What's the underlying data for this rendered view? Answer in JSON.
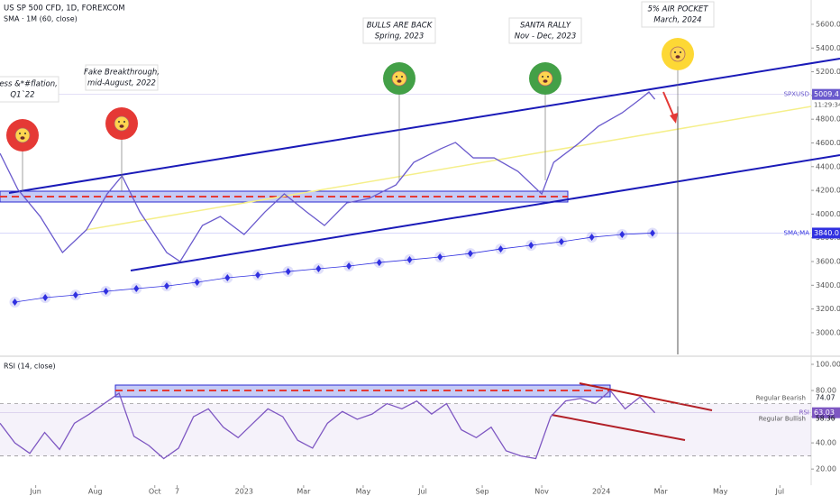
{
  "chart_data": [
    {
      "type": "line",
      "title": "US SP 500 CFD, 1D, FOREXCOM",
      "subtitle": "SMA · 1M (60, close)",
      "xlim": [
        3.8,
        31.05
      ],
      "ylim": [
        2817,
        5805
      ],
      "xticks": [
        {
          "value": 5,
          "label": "Jun"
        },
        {
          "value": 7,
          "label": "Aug"
        },
        {
          "value": 9,
          "label": "Oct"
        },
        {
          "value": 9.75,
          "label": "7"
        },
        {
          "value": 12,
          "label": "2023"
        },
        {
          "value": 14,
          "label": "Mar"
        },
        {
          "value": 16,
          "label": "May"
        },
        {
          "value": 18,
          "label": "Jul"
        },
        {
          "value": 20,
          "label": "Sep"
        },
        {
          "value": 22,
          "label": "Nov"
        },
        {
          "value": 24,
          "label": "2024"
        },
        {
          "value": 26,
          "label": "Mar"
        },
        {
          "value": 28,
          "label": "May"
        },
        {
          "value": 30,
          "label": "Jul"
        }
      ],
      "yticks": [
        {
          "value": 3000,
          "label": "3000.0"
        },
        {
          "value": 3200,
          "label": "3200.0"
        },
        {
          "value": 3400,
          "label": "3400.0"
        },
        {
          "value": 3600,
          "label": "3600.0"
        },
        {
          "value": 3800,
          "label": "3800.0"
        },
        {
          "value": 4000,
          "label": "4000.0"
        },
        {
          "value": 4200,
          "label": "4200.0"
        },
        {
          "value": 4400,
          "label": "4400.0"
        },
        {
          "value": 4600,
          "label": "4600.0"
        },
        {
          "value": 4800,
          "label": "4800.0"
        },
        {
          "value": 5000,
          "label": "5000.0"
        },
        {
          "value": 5200,
          "label": "5200.0"
        },
        {
          "value": 5400,
          "label": "5400.0"
        },
        {
          "value": 5600,
          "label": "5600.0"
        }
      ],
      "series": [
        {
          "name": "SPXUSD",
          "color": "#6a5acd",
          "x": [
            3.8,
            4.4,
            5.15,
            5.9,
            6.7,
            7.4,
            7.9,
            8.5,
            9.4,
            9.85,
            10.6,
            11.2,
            12,
            12.7,
            13.35,
            14.1,
            14.7,
            15.45,
            16.2,
            17.1,
            17.7,
            18.6,
            19.1,
            19.7,
            20.4,
            21.2,
            22,
            22.4,
            23.2,
            23.9,
            24.7,
            25.3,
            25.6,
            25.8
          ],
          "values": [
            4512,
            4208,
            3980,
            3676,
            3866,
            4170,
            4322,
            4018,
            3676,
            3600,
            3904,
            3980,
            3828,
            4018,
            4170,
            4018,
            3904,
            4094,
            4132,
            4246,
            4436,
            4550,
            4604,
            4474,
            4474,
            4360,
            4170,
            4436,
            4588,
            4740,
            4854,
            4968,
            5029,
            4968
          ],
          "last_value": {
            "value": 5009.4,
            "label": "5009.4"
          },
          "last_time": "11:29:34"
        },
        {
          "name": "SMA;MA",
          "color": "#3030e0",
          "x": [
            4.3,
            5.32,
            6.34,
            7.36,
            8.38,
            9.4,
            10.42,
            11.44,
            12.46,
            13.48,
            14.5,
            15.52,
            16.54,
            17.56,
            18.58,
            19.6,
            20.62,
            21.64,
            22.66,
            23.68,
            24.7,
            25.72
          ],
          "values": [
            3258,
            3296,
            3318,
            3349,
            3372,
            3394,
            3425,
            3463,
            3486,
            3516,
            3539,
            3562,
            3592,
            3615,
            3638,
            3668,
            3706,
            3737,
            3767,
            3805,
            3828,
            3840
          ],
          "last_value": {
            "value": 3840,
            "label": "3840.0"
          }
        }
      ],
      "annotations": [
        {
          "lines": [
            "ndless &*#flation,",
            "Q1`22"
          ]
        },
        {
          "lines": [
            "Fake Breakthrough,",
            "mid-August, 2022"
          ]
        },
        {
          "lines": [
            "BULLS ARE BACK",
            "Spring, 2023"
          ]
        },
        {
          "lines": [
            "SANTA RALLY",
            "Nov - Dec, 2023"
          ]
        },
        {
          "lines": [
            "5% AIR POCKET",
            "March, 2024"
          ]
        }
      ]
    },
    {
      "type": "line",
      "title": "RSI (14, close)",
      "xlim": [
        3.8,
        31.05
      ],
      "ylim": [
        7.7,
        105.5
      ],
      "yticks": [
        {
          "value": 20,
          "label": "20.00"
        },
        {
          "value": 40,
          "label": "40.00"
        },
        {
          "value": 60,
          "label": "60.00"
        },
        {
          "value": 80,
          "label": "80.00"
        },
        {
          "value": 100,
          "label": "100.00"
        }
      ],
      "band": [
        30,
        70
      ],
      "series": [
        {
          "name": "RSI",
          "color": "#7e57c2",
          "x": [
            3.8,
            4.3,
            4.8,
            5.3,
            5.8,
            6.3,
            6.8,
            7.3,
            7.8,
            8.3,
            8.8,
            9.3,
            9.8,
            10.3,
            10.8,
            11.3,
            11.8,
            12.3,
            12.8,
            13.3,
            13.8,
            14.3,
            14.8,
            15.3,
            15.8,
            16.3,
            16.8,
            17.3,
            17.8,
            18.3,
            18.8,
            19.3,
            19.8,
            20.3,
            20.8,
            21.3,
            21.8,
            22.3,
            22.8,
            23.3,
            23.8,
            24.3,
            24.8,
            25.3,
            25.8
          ],
          "values": [
            55,
            40,
            32,
            48,
            35,
            55,
            62,
            70,
            78,
            45,
            38,
            28,
            36,
            60,
            66,
            52,
            44,
            55,
            66,
            60,
            42,
            36,
            55,
            64,
            58,
            62,
            70,
            66,
            72,
            62,
            70,
            50,
            44,
            52,
            34,
            30,
            28,
            60,
            72,
            74,
            70,
            80,
            66,
            75,
            63.03
          ],
          "last_value": {
            "value": 63.03,
            "label": "63.03"
          }
        }
      ],
      "levels": [
        {
          "name": "Regular Bearish",
          "value": 74.07,
          "label": "74.07"
        },
        {
          "name": "Regular Bullish",
          "value": 58.36,
          "label": "58.36"
        }
      ]
    }
  ]
}
